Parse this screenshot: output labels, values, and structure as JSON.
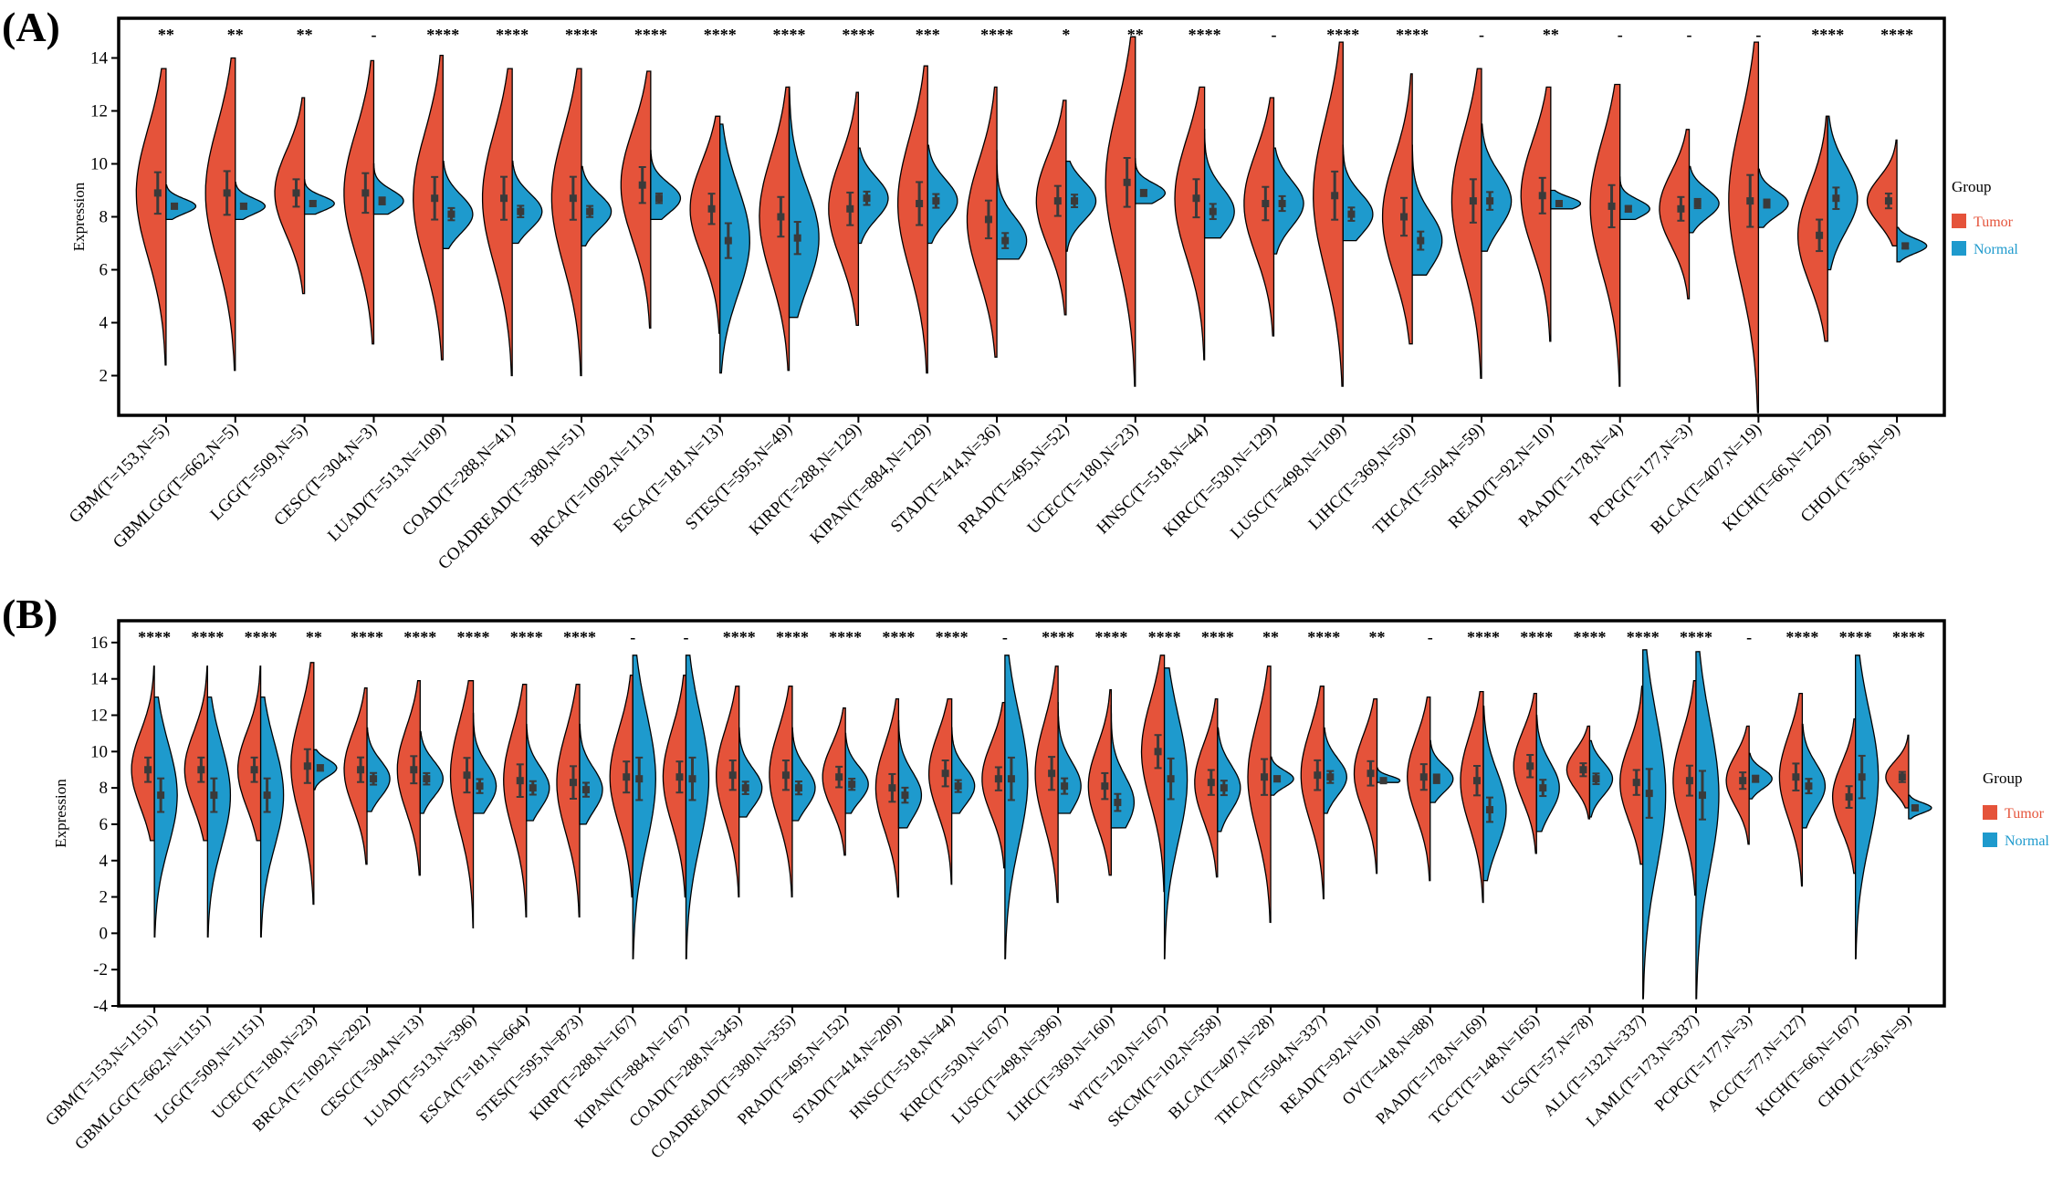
{
  "chart_data": [
    {
      "type": "split-violin",
      "panel_label": "(A)",
      "ylabel": "Expression",
      "ylim": [
        0.5,
        15.5
      ],
      "yticks": [
        2,
        4,
        6,
        8,
        10,
        12,
        14
      ],
      "legend": {
        "title": "Group",
        "entries": [
          "Tumor",
          "Normal"
        ],
        "colors": [
          "#E5533A",
          "#1E9ACD"
        ],
        "placement": "right"
      },
      "categories": [
        "GBM(T=153,N=5)",
        "GBMLGG(T=662,N=5)",
        "LGG(T=509,N=5)",
        "CESC(T=304,N=3)",
        "LUAD(T=513,N=109)",
        "COAD(T=288,N=41)",
        "COADREAD(T=380,N=51)",
        "BRCA(T=1092,N=113)",
        "ESCA(T=181,N=13)",
        "STES(T=595,N=49)",
        "KIRP(T=288,N=129)",
        "KIPAN(T=884,N=129)",
        "STAD(T=414,N=36)",
        "PRAD(T=495,N=52)",
        "UCEC(T=180,N=23)",
        "HNSC(T=518,N=44)",
        "KIRC(T=530,N=129)",
        "LUSC(T=498,N=109)",
        "LIHC(T=369,N=50)",
        "THCA(T=504,N=59)",
        "READ(T=92,N=10)",
        "PAAD(T=178,N=4)",
        "PCPG(T=177,N=3)",
        "BLCA(T=407,N=19)",
        "KICH(T=66,N=129)",
        "CHOL(T=36,N=9)"
      ],
      "significance": [
        "**",
        "**",
        "**",
        "-",
        "****",
        "****",
        "****",
        "****",
        "****",
        "****",
        "****",
        "***",
        "****",
        "*",
        "**",
        "****",
        "-",
        "****",
        "****",
        "-",
        "**",
        "-",
        "-",
        "-",
        "****",
        "****"
      ],
      "series": [
        {
          "name": "Tumor",
          "min": [
            2.4,
            2.2,
            5.1,
            3.2,
            2.6,
            2.0,
            2.0,
            3.8,
            3.6,
            2.2,
            3.9,
            2.1,
            2.7,
            4.3,
            1.6,
            2.6,
            3.5,
            1.6,
            3.2,
            1.9,
            3.3,
            1.6,
            4.9,
            0.6,
            3.3,
            6.9
          ],
          "max": [
            13.6,
            14.0,
            12.5,
            13.9,
            14.1,
            13.6,
            13.6,
            13.5,
            11.8,
            12.9,
            12.7,
            13.7,
            12.9,
            12.4,
            14.8,
            12.9,
            12.5,
            14.6,
            13.4,
            13.6,
            12.9,
            13.0,
            11.3,
            14.6,
            11.8,
            10.9
          ],
          "median": [
            8.9,
            8.9,
            8.9,
            8.9,
            8.7,
            8.7,
            8.7,
            9.2,
            8.3,
            8.0,
            8.3,
            8.5,
            7.9,
            8.6,
            9.3,
            8.7,
            8.5,
            8.8,
            8.0,
            8.6,
            8.8,
            8.4,
            8.3,
            8.6,
            7.3,
            8.6
          ]
        },
        {
          "name": "Normal",
          "min": [
            7.9,
            7.9,
            8.1,
            8.1,
            6.8,
            7.0,
            6.9,
            7.9,
            2.1,
            4.2,
            7.0,
            7.0,
            6.4,
            6.7,
            8.5,
            7.2,
            6.6,
            7.1,
            5.8,
            6.7,
            8.3,
            7.9,
            7.4,
            7.6,
            6.0,
            6.3
          ],
          "max": [
            9.2,
            9.3,
            9.4,
            10.0,
            10.1,
            10.1,
            9.9,
            10.5,
            11.5,
            12.9,
            10.6,
            10.7,
            10.5,
            10.1,
            10.2,
            11.3,
            10.6,
            10.7,
            10.7,
            11.5,
            9.0,
            9.5,
            9.9,
            9.8,
            11.8,
            7.6
          ],
          "median": [
            8.4,
            8.4,
            8.5,
            8.6,
            8.1,
            8.2,
            8.2,
            8.7,
            7.1,
            7.2,
            8.7,
            8.6,
            7.1,
            8.6,
            8.9,
            8.2,
            8.5,
            8.1,
            7.1,
            8.6,
            8.5,
            8.3,
            8.5,
            8.5,
            8.7,
            6.9
          ]
        }
      ]
    },
    {
      "type": "split-violin",
      "panel_label": "(B)",
      "ylabel": "Expression",
      "ylim": [
        -4,
        17.2
      ],
      "yticks": [
        -4,
        -2,
        0,
        2,
        4,
        6,
        8,
        10,
        12,
        14,
        16
      ],
      "legend": {
        "title": "Group",
        "entries": [
          "Tumor",
          "Normal"
        ],
        "colors": [
          "#E5533A",
          "#1E9ACD"
        ],
        "placement": "right"
      },
      "categories": [
        "GBM(T=153,N=1151)",
        "GBMLGG(T=662,N=1151)",
        "LGG(T=509,N=1151)",
        "UCEC(T=180,N=23)",
        "BRCA(T=1092,N=292)",
        "CESC(T=304,N=13)",
        "LUAD(T=513,N=396)",
        "ESCA(T=181,N=664)",
        "STES(T=595,N=873)",
        "KIRP(T=288,N=167)",
        "KIPAN(T=884,N=167)",
        "COAD(T=288,N=345)",
        "COADREAD(T=380,N=355)",
        "PRAD(T=495,N=152)",
        "STAD(T=414,N=209)",
        "HNSC(T=518,N=44)",
        "KIRC(T=530,N=167)",
        "LUSC(T=498,N=396)",
        "LIHC(T=369,N=160)",
        "WT(T=120,N=167)",
        "SKCM(T=102,N=558)",
        "BLCA(T=407,N=28)",
        "THCA(T=504,N=337)",
        "READ(T=92,N=10)",
        "OV(T=418,N=88)",
        "PAAD(T=178,N=169)",
        "TGCT(T=148,N=165)",
        "UCS(T=57,N=78)",
        "ALL(T=132,N=337)",
        "LAML(T=173,N=337)",
        "PCPG(T=177,N=3)",
        "ACC(T=77,N=127)",
        "KICH(T=66,N=167)",
        "CHOL(T=36,N=9)"
      ],
      "significance": [
        "****",
        "****",
        "****",
        "**",
        "****",
        "****",
        "****",
        "****",
        "****",
        "-",
        "-",
        "****",
        "****",
        "****",
        "****",
        "****",
        "-",
        "****",
        "****",
        "****",
        "****",
        "**",
        "****",
        "**",
        "-",
        "****",
        "****",
        "****",
        "****",
        "****",
        "-",
        "****",
        "****",
        "****"
      ],
      "series": [
        {
          "name": "Tumor",
          "min": [
            5.1,
            5.1,
            5.1,
            1.6,
            3.8,
            3.2,
            0.3,
            0.9,
            0.9,
            2.0,
            2.0,
            2.0,
            2.0,
            4.3,
            2.0,
            2.7,
            3.6,
            1.7,
            3.2,
            2.3,
            3.1,
            0.6,
            1.9,
            3.3,
            2.9,
            1.7,
            4.4,
            6.3,
            3.8,
            2.1,
            4.9,
            2.6,
            3.3,
            6.9
          ],
          "max": [
            14.7,
            14.7,
            14.7,
            14.9,
            13.5,
            13.9,
            13.9,
            13.7,
            13.7,
            14.2,
            14.2,
            13.6,
            13.6,
            12.4,
            12.9,
            12.9,
            12.7,
            14.7,
            13.4,
            15.3,
            12.9,
            14.7,
            13.6,
            12.9,
            13.0,
            13.3,
            13.2,
            11.4,
            13.6,
            13.9,
            11.4,
            13.2,
            11.8,
            10.9
          ],
          "median": [
            9.0,
            9.0,
            9.0,
            9.2,
            9.0,
            9.0,
            8.7,
            8.4,
            8.3,
            8.6,
            8.6,
            8.7,
            8.7,
            8.6,
            8.0,
            8.8,
            8.5,
            8.8,
            8.1,
            10.0,
            8.3,
            8.6,
            8.7,
            8.8,
            8.6,
            8.4,
            9.2,
            9.0,
            8.3,
            8.4,
            8.4,
            8.6,
            7.5,
            8.6
          ]
        },
        {
          "name": "Normal",
          "min": [
            -0.2,
            -0.2,
            -0.2,
            7.9,
            6.7,
            6.6,
            6.6,
            6.2,
            6.0,
            -1.4,
            -1.4,
            6.4,
            6.2,
            6.6,
            5.8,
            6.6,
            -1.4,
            6.6,
            5.8,
            -1.4,
            5.6,
            7.6,
            6.6,
            8.3,
            7.2,
            2.9,
            5.6,
            6.4,
            -3.6,
            -3.6,
            7.4,
            5.8,
            -1.4,
            6.3
          ],
          "max": [
            13.0,
            13.0,
            13.0,
            10.1,
            11.3,
            11.1,
            12.1,
            11.5,
            11.5,
            15.3,
            15.3,
            11.3,
            11.3,
            11.0,
            11.7,
            11.3,
            15.3,
            12.7,
            12.5,
            14.6,
            11.3,
            9.7,
            11.3,
            9.1,
            10.6,
            12.5,
            12.0,
            10.6,
            15.6,
            15.5,
            9.9,
            11.5,
            15.3,
            7.6
          ],
          "median": [
            7.6,
            7.6,
            7.6,
            9.1,
            8.5,
            8.5,
            8.1,
            8.0,
            7.9,
            8.5,
            8.5,
            8.0,
            8.0,
            8.2,
            7.6,
            8.1,
            8.5,
            8.1,
            7.2,
            8.5,
            8.0,
            8.5,
            8.6,
            8.4,
            8.5,
            6.8,
            8.0,
            8.5,
            7.7,
            7.6,
            8.5,
            8.1,
            8.6,
            6.9
          ]
        }
      ]
    }
  ]
}
